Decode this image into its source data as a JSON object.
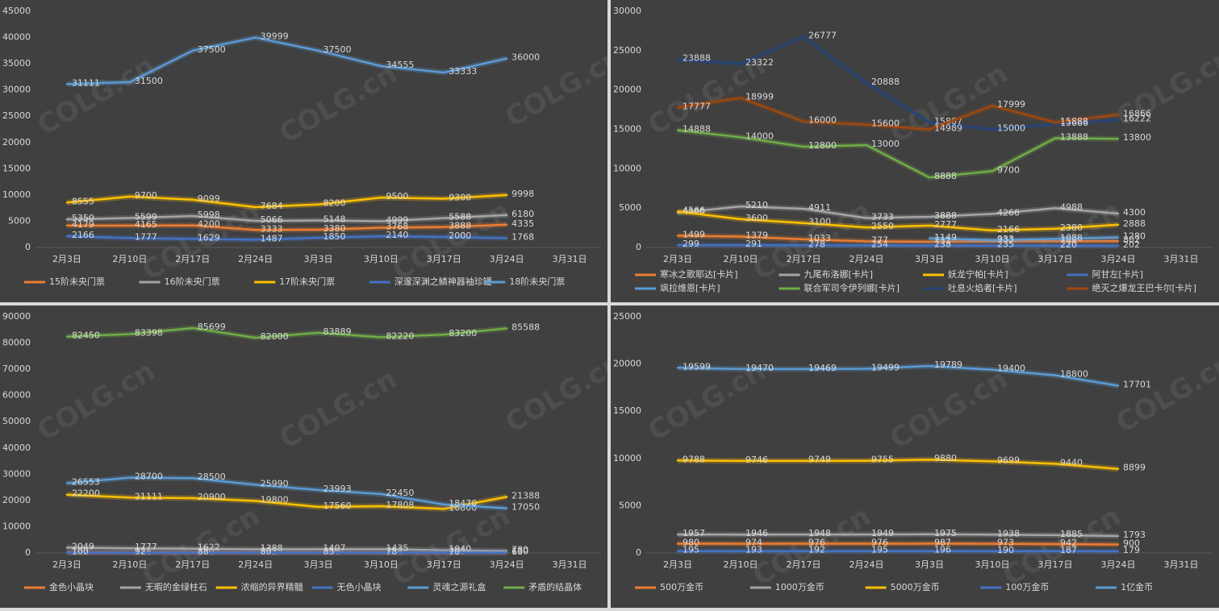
{
  "watermark": "COLG.cn",
  "chart_data": [
    {
      "type": "line",
      "categories": [
        "2月3日",
        "2月10日",
        "2月17日",
        "2月24日",
        "3月3日",
        "3月10日",
        "3月17日",
        "3月24日",
        "3月31日"
      ],
      "ylim": [
        0,
        45000
      ],
      "yticks": [
        0,
        5000,
        10000,
        15000,
        20000,
        25000,
        30000,
        35000,
        40000,
        45000
      ],
      "series": [
        {
          "name": "15阶未央门票",
          "color": "#ed7d31",
          "values": [
            4179,
            4165,
            4200,
            3333,
            3380,
            3768,
            3888,
            4335,
            null
          ]
        },
        {
          "name": "16阶未央门票",
          "color": "#a5a5a5",
          "values": [
            5350,
            5599,
            5998,
            5066,
            5148,
            4999,
            5588,
            6180,
            null
          ]
        },
        {
          "name": "17阶未央门票",
          "color": "#ffc000",
          "values": [
            8555,
            9700,
            9099,
            7684,
            8200,
            9500,
            9300,
            9998,
            null
          ]
        },
        {
          "name": "深邃深渊之鳞神器袖珍罐",
          "color": "#4472c4",
          "values": [
            2166,
            1777,
            1629,
            1487,
            1850,
            2140,
            2000,
            1768,
            null
          ]
        },
        {
          "name": "18阶未央门票",
          "color": "#5b9bd5",
          "values": [
            31111,
            31500,
            37500,
            39999,
            37500,
            34555,
            33333,
            36000,
            null
          ]
        }
      ]
    },
    {
      "type": "line",
      "categories": [
        "2月3日",
        "2月10日",
        "2月17日",
        "2月24日",
        "3月3日",
        "3月10日",
        "3月17日",
        "3月24日",
        "3月31日"
      ],
      "ylim": [
        0,
        30000
      ],
      "yticks": [
        0,
        5000,
        10000,
        15000,
        20000,
        25000,
        30000
      ],
      "series": [
        {
          "name": "寒冰之歌耶达[卡片]",
          "color": "#ed7d31",
          "values": [
            1499,
            1379,
            1033,
            777,
            731,
            777,
            788,
            802,
            null
          ]
        },
        {
          "name": "九尾布洛娜[卡片]",
          "color": "#a5a5a5",
          "values": [
            4400,
            5210,
            4911,
            3733,
            3888,
            4266,
            4988,
            4300,
            null
          ]
        },
        {
          "name": "妖龙宁帕[卡片]",
          "color": "#ffc000",
          "values": [
            4566,
            3600,
            3100,
            2550,
            2777,
            2166,
            2380,
            2888,
            null
          ]
        },
        {
          "name": "阿甘左[卡片]",
          "color": "#4472c4",
          "values": [
            299,
            291,
            278,
            254,
            238,
            235,
            220,
            202,
            null
          ]
        },
        {
          "name": "飒拉维恩[卡片]",
          "color": "#5b9bd5",
          "values": [
            null,
            null,
            null,
            null,
            1149,
            933,
            1088,
            1280,
            null
          ]
        },
        {
          "name": "联合军司令伊列娜[卡片]",
          "color": "#70ad47",
          "values": [
            14888,
            14000,
            12800,
            13000,
            8888,
            9700,
            13888,
            13800,
            null
          ]
        },
        {
          "name": "吐息火焰者[卡片]",
          "color": "#264478",
          "values": [
            23888,
            23322,
            26777,
            20888,
            15887,
            15000,
            15666,
            16222,
            null
          ]
        },
        {
          "name": "绝灭之爆龙王巴卡尔[卡片]",
          "color": "#9e480e",
          "values": [
            17777,
            18999,
            16000,
            15600,
            14989,
            17999,
            15888,
            16866,
            null
          ]
        }
      ]
    },
    {
      "type": "line",
      "categories": [
        "2月3日",
        "2月10日",
        "2月17日",
        "2月24日",
        "3月3日",
        "3月10日",
        "3月17日",
        "3月24日",
        "3月31日"
      ],
      "ylim": [
        0,
        90000
      ],
      "yticks": [
        0,
        10000,
        20000,
        30000,
        40000,
        50000,
        60000,
        70000,
        80000,
        90000
      ],
      "series": [
        {
          "name": "金色小晶块",
          "color": "#ed7d31",
          "values": [
            165,
            158,
            140,
            132,
            140,
            128,
            120,
            130,
            null
          ]
        },
        {
          "name": "无暇的金绿柱石",
          "color": "#a5a5a5",
          "values": [
            2049,
            1777,
            1622,
            1388,
            1407,
            1435,
            1040,
            780,
            null
          ]
        },
        {
          "name": "浓缩的异界精髓",
          "color": "#ffc000",
          "values": [
            22200,
            21111,
            20900,
            19800,
            17560,
            17808,
            16800,
            21388,
            null
          ]
        },
        {
          "name": "无色小晶块",
          "color": "#4472c4",
          "values": [
            100,
            92,
            88,
            80,
            85,
            78,
            70,
            60,
            null
          ]
        },
        {
          "name": "灵魂之源礼盒",
          "color": "#5b9bd5",
          "values": [
            26553,
            28700,
            28500,
            25990,
            23993,
            22450,
            18470,
            17050,
            null
          ]
        },
        {
          "name": "矛盾的结晶体",
          "color": "#70ad47",
          "values": [
            82450,
            83398,
            85699,
            82000,
            83889,
            82220,
            83200,
            85588,
            null
          ]
        }
      ]
    },
    {
      "type": "line",
      "categories": [
        "2月3日",
        "2月10日",
        "2月17日",
        "2月24日",
        "3月3日",
        "3月10日",
        "3月17日",
        "3月24日",
        "3月31日"
      ],
      "ylim": [
        0,
        25000
      ],
      "yticks": [
        0,
        5000,
        10000,
        15000,
        20000,
        25000
      ],
      "series": [
        {
          "name": "500万金币",
          "color": "#ed7d31",
          "values": [
            980,
            974,
            976,
            976,
            987,
            973,
            942,
            900,
            null
          ]
        },
        {
          "name": "1000万金币",
          "color": "#a5a5a5",
          "values": [
            1957,
            1946,
            1948,
            1949,
            1975,
            1938,
            1885,
            1793,
            null
          ]
        },
        {
          "name": "5000万金币",
          "color": "#ffc000",
          "values": [
            9788,
            9746,
            9749,
            9755,
            9880,
            9699,
            9440,
            8899,
            null
          ]
        },
        {
          "name": "100万金币",
          "color": "#4472c4",
          "values": [
            195,
            193,
            192,
            195,
            196,
            190,
            187,
            179,
            null
          ]
        },
        {
          "name": "1亿金币",
          "color": "#5b9bd5",
          "values": [
            19599,
            19470,
            19469,
            19499,
            19789,
            19400,
            18800,
            17701,
            null
          ]
        }
      ]
    }
  ]
}
